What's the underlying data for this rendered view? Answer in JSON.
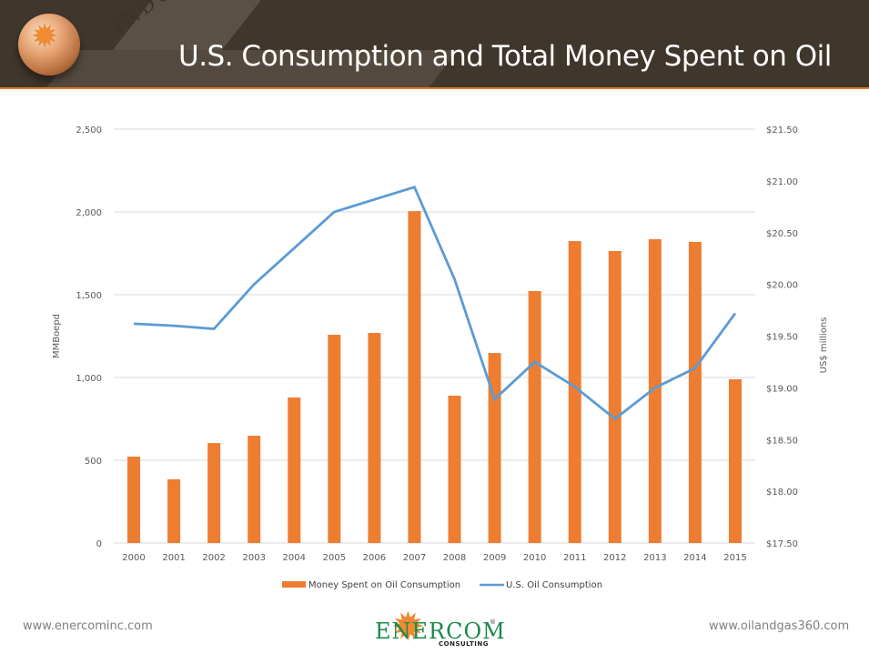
{
  "header": {
    "title": "U.S. Consumption and Total Money Spent on Oil",
    "watermark": "INDUSTRY"
  },
  "footer": {
    "left_url": "www.enercominc.com",
    "right_url": "www.oilandgas360.com",
    "logo_word": "ENERCOM",
    "logo_sub": "CONSULTING",
    "logo_reg": "®"
  },
  "colors": {
    "bars": "#ed7d31",
    "line": "#5b9bd5",
    "header_bg": "#3f362c",
    "accent": "#e07a2e"
  },
  "chart_data": {
    "type": "bar",
    "title": "",
    "categories": [
      "2000",
      "2001",
      "2002",
      "2003",
      "2004",
      "2005",
      "2006",
      "2007",
      "2008",
      "2009",
      "2010",
      "2011",
      "2012",
      "2013",
      "2014",
      "2015"
    ],
    "series": [
      {
        "name": "Money Spent on Oil Consumption",
        "type": "bar",
        "axis": "left",
        "values": [
          522,
          385,
          604,
          648,
          879,
          1258,
          1269,
          2005,
          890,
          1148,
          1522,
          1824,
          1764,
          1835,
          1819,
          989
        ]
      },
      {
        "name": "U.S. Oil Consumption",
        "type": "line",
        "axis": "right",
        "values": [
          19.62,
          19.6,
          19.57,
          20.0,
          20.35,
          20.7,
          20.82,
          20.94,
          20.05,
          18.89,
          19.25,
          19.01,
          18.7,
          19.0,
          19.19,
          19.72
        ]
      }
    ],
    "left_axis": {
      "label": "MMBoepd",
      "ylim": [
        0,
        2500
      ],
      "ticks": [
        0,
        500,
        1000,
        1500,
        2000,
        2500
      ],
      "tick_labels": [
        "0",
        "500",
        "1,000",
        "1,500",
        "2,000",
        "2,500"
      ]
    },
    "right_axis": {
      "label": "US$ millions",
      "ylim": [
        17.5,
        21.5
      ],
      "ticks": [
        17.5,
        18.0,
        18.5,
        19.0,
        19.5,
        20.0,
        20.5,
        21.0,
        21.5
      ],
      "tick_labels": [
        "$17.50",
        "$18.00",
        "$18.50",
        "$19.00",
        "$19.50",
        "$20.00",
        "$20.50",
        "$21.00",
        "$21.50"
      ]
    },
    "grid": true,
    "legend": {
      "position": "bottom",
      "entries": [
        "Money Spent on Oil Consumption",
        "U.S. Oil Consumption"
      ]
    }
  }
}
